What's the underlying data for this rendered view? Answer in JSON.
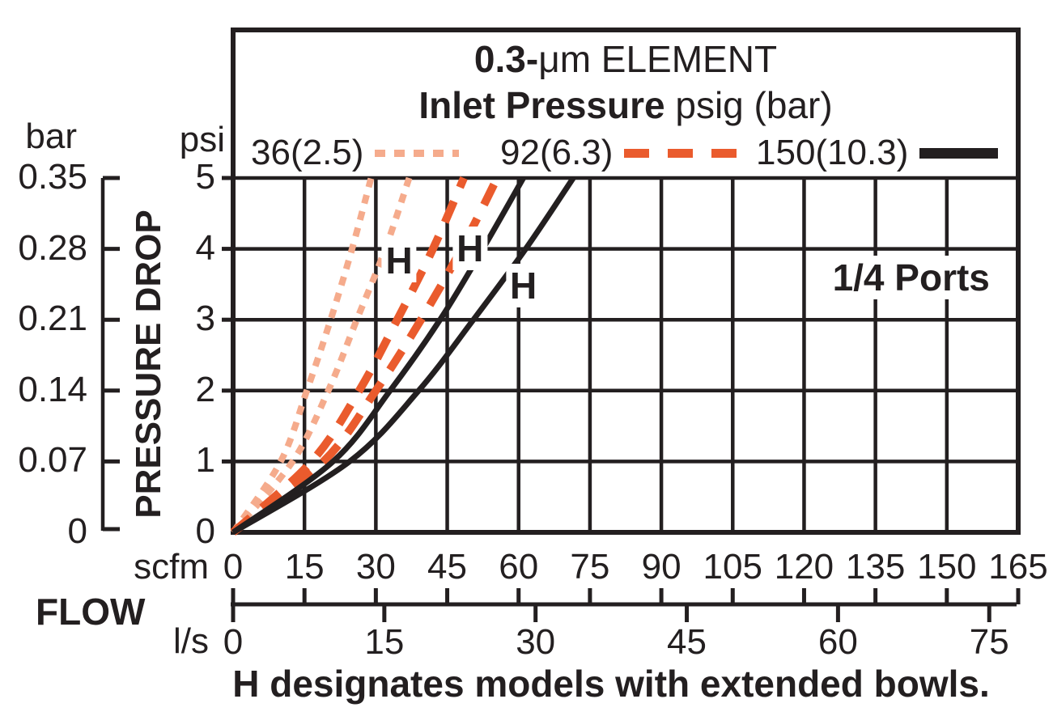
{
  "page": {
    "background": "#ffffff",
    "ink": "#231f20"
  },
  "title": {
    "bold": "0.3-",
    "regular": "μm ELEMENT"
  },
  "subtitle": {
    "bold": "Inlet Pressure",
    "regular": " psig (bar)"
  },
  "legend": [
    {
      "label": "36(2.5)",
      "style": "dotted",
      "color": "#f5ab8c"
    },
    {
      "label": "92(6.3)",
      "style": "dashed",
      "color": "#ea5b2d"
    },
    {
      "label": "150(10.3)",
      "style": "solid",
      "color": "#231f20"
    }
  ],
  "y_axis": {
    "secondary_unit": "bar",
    "primary_unit": "psi",
    "label": "PRESSURE DROP",
    "bar_ticks": [
      "0.35",
      "0.28",
      "0.21",
      "0.14",
      "0.07",
      "0"
    ],
    "psi_ticks": [
      "5",
      "4",
      "3",
      "2",
      "1",
      "0"
    ]
  },
  "x_axis": {
    "label": "FLOW",
    "primary_unit": "scfm",
    "secondary_unit": "l/s",
    "scfm_ticks": [
      "0",
      "15",
      "30",
      "45",
      "60",
      "75",
      "90",
      "105",
      "120",
      "135",
      "150",
      "165"
    ],
    "ls_ticks": [
      "0",
      "15",
      "30",
      "45",
      "60",
      "75"
    ]
  },
  "annotations": {
    "ports": "1/4 Ports",
    "h_marker": "H",
    "caption": "H designates models with extended bowls."
  },
  "chart_data": {
    "type": "line",
    "title": "0.3-μm ELEMENT",
    "subtitle": "Inlet Pressure psig (bar)",
    "xlabel": "FLOW",
    "ylabel": "PRESSURE DROP",
    "x_units": [
      "scfm",
      "l/s"
    ],
    "y_units": [
      "psi",
      "bar"
    ],
    "x_range_scfm": [
      0,
      165
    ],
    "y_range_psi": [
      0,
      5
    ],
    "scfm_per_ls": 2.1189,
    "bar_per_psi": 0.07,
    "grid": true,
    "legend_position": "top-inside",
    "series": [
      {
        "name": "36(2.5)",
        "inlet_pressure_psig": 36,
        "inlet_pressure_bar": 2.5,
        "style": "dotted",
        "color": "#f5ab8c",
        "curves": [
          {
            "model": "standard",
            "points_scfm_psi": [
              [
                0,
                0
              ],
              [
                10,
                1
              ],
              [
                15.5,
                2
              ],
              [
                20.5,
                3
              ],
              [
                25,
                4
              ],
              [
                29,
                5
              ]
            ]
          },
          {
            "model": "H",
            "points_scfm_psi": [
              [
                0,
                0
              ],
              [
                12.5,
                1
              ],
              [
                20,
                2
              ],
              [
                26,
                3
              ],
              [
                32,
                4
              ],
              [
                37,
                5
              ]
            ]
          }
        ]
      },
      {
        "name": "92(6.3)",
        "inlet_pressure_psig": 92,
        "inlet_pressure_bar": 6.3,
        "style": "dashed",
        "color": "#ea5b2d",
        "curves": [
          {
            "model": "standard",
            "points_scfm_psi": [
              [
                0,
                0
              ],
              [
                16.5,
                1
              ],
              [
                26.5,
                2
              ],
              [
                34.5,
                3
              ],
              [
                42,
                4
              ],
              [
                48.5,
                5
              ]
            ]
          },
          {
            "model": "H",
            "points_scfm_psi": [
              [
                0,
                0
              ],
              [
                19,
                1
              ],
              [
                30,
                2
              ],
              [
                39.5,
                3
              ],
              [
                48,
                4
              ],
              [
                55.5,
                5
              ]
            ]
          }
        ]
      },
      {
        "name": "150(10.3)",
        "inlet_pressure_psig": 150,
        "inlet_pressure_bar": 10.3,
        "style": "solid",
        "color": "#231f20",
        "curves": [
          {
            "model": "standard",
            "points_scfm_psi": [
              [
                0,
                0
              ],
              [
                21,
                1
              ],
              [
                33,
                2
              ],
              [
                43.5,
                3
              ],
              [
                52.5,
                4
              ],
              [
                61,
                5
              ]
            ]
          },
          {
            "model": "H",
            "points_scfm_psi": [
              [
                0,
                0
              ],
              [
                24.5,
                1
              ],
              [
                39,
                2
              ],
              [
                50.5,
                3
              ],
              [
                61.5,
                4
              ],
              [
                71.5,
                5
              ]
            ]
          }
        ]
      }
    ],
    "point_labels": [
      {
        "text": "H",
        "scfm": 34.9,
        "psi": 3.84
      },
      {
        "text": "H",
        "scfm": 49.8,
        "psi": 4.01
      },
      {
        "text": "H",
        "scfm": 61.0,
        "psi": 3.48
      }
    ],
    "ports_annotation": {
      "text": "1/4 Ports",
      "scfm": 142.5,
      "psi": 3.6
    }
  }
}
